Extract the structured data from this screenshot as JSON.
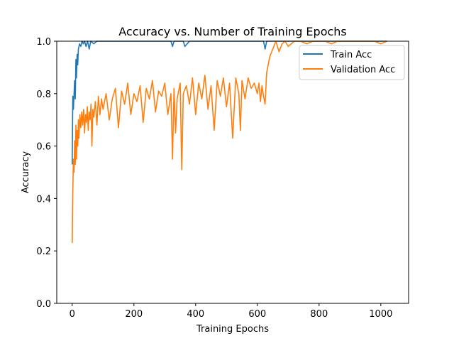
{
  "chart_data": {
    "type": "line",
    "title": "Accuracy vs. Number of Training Epochs",
    "xlabel": "Training Epochs",
    "ylabel": "Accuracy",
    "xlim": [
      -50,
      1090
    ],
    "ylim": [
      0.0,
      1.0
    ],
    "xticks": [
      0,
      200,
      400,
      600,
      800,
      1000
    ],
    "yticks": [
      0.0,
      0.2,
      0.4,
      0.6,
      0.8,
      1.0
    ],
    "xtick_labels": [
      "0",
      "200",
      "400",
      "600",
      "800",
      "1000"
    ],
    "ytick_labels": [
      "0.0",
      "0.2",
      "0.4",
      "0.6",
      "0.8",
      "1.0"
    ],
    "grid": false,
    "legend_position": "top-right",
    "series": [
      {
        "name": "Train Acc",
        "color": "#1f77b4",
        "x": [
          0,
          2,
          4,
          6,
          8,
          10,
          12,
          14,
          16,
          18,
          20,
          24,
          28,
          32,
          36,
          40,
          45,
          50,
          55,
          60,
          70,
          80,
          90,
          100,
          120,
          150,
          200,
          230,
          250,
          280,
          300,
          320,
          325,
          330,
          340,
          360,
          365,
          380,
          420,
          460,
          500,
          540,
          580,
          600,
          620,
          625,
          630,
          640,
          660,
          700,
          750,
          800,
          850,
          900,
          950,
          1000,
          1020
        ],
        "values": [
          0.53,
          0.79,
          0.74,
          0.8,
          0.85,
          0.78,
          0.93,
          0.86,
          0.95,
          0.91,
          0.97,
          0.99,
          0.98,
          1.0,
          0.99,
          1.0,
          0.98,
          1.0,
          0.97,
          1.0,
          0.99,
          1.0,
          1.0,
          1.0,
          1.0,
          1.0,
          1.0,
          1.0,
          1.0,
          1.0,
          1.0,
          1.0,
          0.98,
          1.0,
          1.0,
          1.0,
          0.98,
          1.0,
          1.0,
          1.0,
          1.0,
          1.0,
          1.0,
          1.0,
          1.0,
          0.97,
          1.0,
          1.0,
          1.0,
          1.0,
          1.0,
          1.0,
          1.0,
          1.0,
          1.0,
          1.0,
          1.0
        ]
      },
      {
        "name": "Validation Acc",
        "color": "#ff7f0e",
        "x": [
          0,
          2,
          4,
          6,
          8,
          10,
          12,
          14,
          16,
          18,
          20,
          22,
          25,
          28,
          31,
          34,
          37,
          40,
          43,
          46,
          49,
          52,
          55,
          58,
          61,
          64,
          67,
          70,
          75,
          80,
          85,
          90,
          95,
          100,
          110,
          120,
          130,
          140,
          150,
          160,
          170,
          180,
          190,
          200,
          210,
          220,
          230,
          240,
          250,
          260,
          270,
          280,
          290,
          300,
          310,
          320,
          325,
          330,
          335,
          340,
          350,
          355,
          360,
          370,
          380,
          390,
          400,
          410,
          420,
          430,
          440,
          450,
          460,
          470,
          480,
          490,
          500,
          510,
          520,
          530,
          540,
          545,
          550,
          560,
          570,
          580,
          590,
          600,
          605,
          610,
          615,
          620,
          625,
          630,
          640,
          650,
          660,
          670,
          680,
          690,
          700,
          720,
          740,
          760,
          780,
          800,
          820,
          840,
          860,
          880,
          900,
          920,
          940,
          960,
          980,
          1000,
          1020
        ],
        "values": [
          0.23,
          0.42,
          0.55,
          0.5,
          0.62,
          0.53,
          0.68,
          0.55,
          0.66,
          0.6,
          0.7,
          0.63,
          0.72,
          0.67,
          0.73,
          0.68,
          0.74,
          0.65,
          0.72,
          0.69,
          0.75,
          0.66,
          0.73,
          0.7,
          0.76,
          0.6,
          0.74,
          0.71,
          0.77,
          0.68,
          0.79,
          0.72,
          0.78,
          0.74,
          0.8,
          0.7,
          0.78,
          0.82,
          0.67,
          0.81,
          0.76,
          0.84,
          0.72,
          0.8,
          0.77,
          0.83,
          0.69,
          0.82,
          0.78,
          0.85,
          0.73,
          0.81,
          0.79,
          0.84,
          0.72,
          0.8,
          0.55,
          0.82,
          0.65,
          0.78,
          0.84,
          0.51,
          0.8,
          0.83,
          0.76,
          0.86,
          0.72,
          0.84,
          0.78,
          0.87,
          0.74,
          0.83,
          0.66,
          0.85,
          0.79,
          0.86,
          0.75,
          0.84,
          0.63,
          0.86,
          0.8,
          0.66,
          0.85,
          0.78,
          0.86,
          0.82,
          0.84,
          0.8,
          0.84,
          0.77,
          0.83,
          0.79,
          0.76,
          0.88,
          0.94,
          0.97,
          1.0,
          0.96,
          0.99,
          1.0,
          0.98,
          1.0,
          1.0,
          0.99,
          1.0,
          1.0,
          1.0,
          0.99,
          1.0,
          1.0,
          1.0,
          1.0,
          1.0,
          1.0,
          1.0,
          0.99,
          1.0
        ]
      }
    ]
  }
}
